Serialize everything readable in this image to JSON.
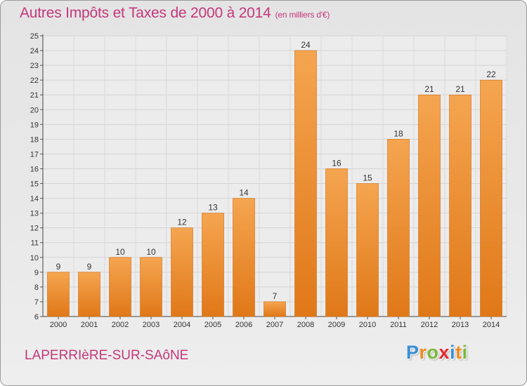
{
  "title": "Autres Impôts et Taxes de 2000 à 2014",
  "subtitle": "(en milliers d'€)",
  "commune": "LAPERRIèRE-SUR-SAôNE",
  "logo": {
    "letters": [
      "P",
      "r",
      "o",
      "x",
      "i",
      "t",
      "i"
    ],
    "colors": [
      "#3a8fd6",
      "#f08a1c",
      "#7ab83a",
      "#e8282e",
      "#3a8fd6",
      "#f08a1c",
      "#7ab83a"
    ]
  },
  "colors": {
    "bar_top": "#f5a550",
    "bar_bottom": "#e07818",
    "bar_edge": "#d06a10",
    "accent": "#c4377a"
  },
  "chart_data": {
    "type": "bar",
    "title": "Autres Impôts et Taxes de 2000 à 2014",
    "subtitle": "(en milliers d'€)",
    "categories": [
      "2000",
      "2001",
      "2002",
      "2003",
      "2004",
      "2005",
      "2006",
      "2007",
      "2008",
      "2009",
      "2010",
      "2011",
      "2012",
      "2013",
      "2014"
    ],
    "values": [
      9,
      9,
      10,
      10,
      12,
      13,
      14,
      7,
      24,
      16,
      15,
      18,
      21,
      21,
      22
    ],
    "ylim": [
      6,
      25
    ],
    "yticks": [
      6,
      7,
      8,
      9,
      10,
      11,
      12,
      13,
      14,
      15,
      16,
      17,
      18,
      19,
      20,
      21,
      22,
      23,
      24,
      25
    ],
    "grid": true,
    "data_labels": true
  }
}
